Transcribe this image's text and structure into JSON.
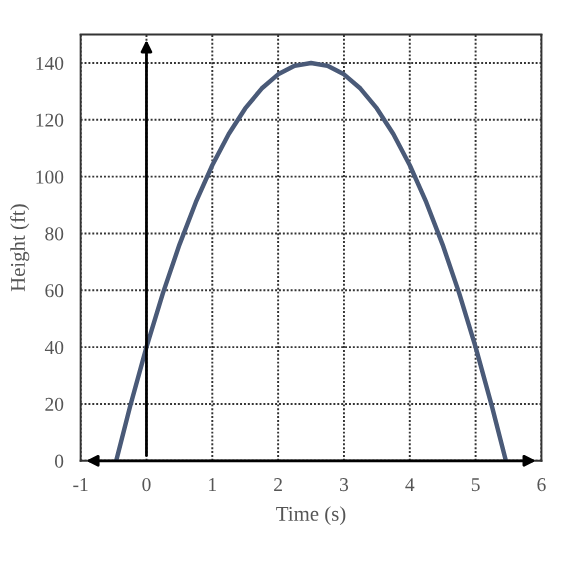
{
  "chart_data": {
    "type": "line",
    "xlabel": "Time (s)",
    "ylabel": "Height (ft)",
    "series": [
      {
        "color": "#4a5a78",
        "x": [
          -0.46,
          -0.25,
          0,
          0.25,
          0.5,
          0.75,
          1,
          1.25,
          1.5,
          1.75,
          2,
          2.25,
          2.5,
          2.75,
          3,
          3.25,
          3.5,
          3.75,
          4,
          4.25,
          4.5,
          4.75,
          5,
          5.25,
          5.46
        ],
        "values": [
          0,
          19,
          40,
          59,
          76,
          91,
          104,
          115,
          124,
          131,
          136,
          139,
          140,
          139,
          136,
          131,
          124,
          115,
          104,
          91,
          76,
          59,
          40,
          19,
          0
        ]
      }
    ],
    "xlim": [
      -1,
      6
    ],
    "ylim": [
      0,
      150
    ],
    "xticks": [
      -1,
      0,
      1,
      2,
      3,
      4,
      5,
      6
    ],
    "yticks": [
      0,
      20,
      40,
      60,
      80,
      100,
      120,
      140
    ],
    "grid": true,
    "line_style": "solid",
    "marker": "none"
  }
}
